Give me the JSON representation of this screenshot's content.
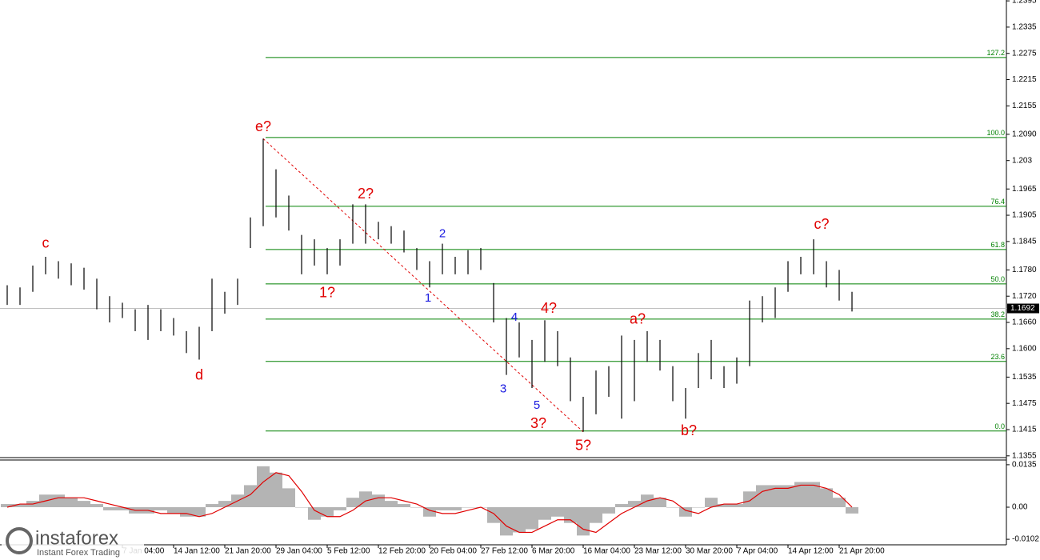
{
  "chart_data": [
    {
      "type": "ohlc",
      "color": "#000000",
      "categories": [
        null,
        null,
        null,
        null,
        null,
        null,
        null,
        null,
        null,
        "7 Jan 04:00",
        null,
        null,
        null,
        "14 Jan 12:00",
        null,
        null,
        null,
        "21 Jan 20:00",
        null,
        null,
        null,
        "29 Jan 04:00",
        null,
        null,
        null,
        "5 Feb 12:00",
        null,
        null,
        null,
        "12 Feb 20:00",
        null,
        null,
        null,
        "20 Feb 04:00",
        null,
        null,
        null,
        "27 Feb 12:00",
        null,
        null,
        null,
        "6 Mar 20:00",
        null,
        null,
        null,
        "16 Mar 04:00",
        null,
        null,
        null,
        "23 Mar 12:00",
        null,
        null,
        null,
        "30 Mar 20:00",
        null,
        null,
        null,
        "7 Apr 04:00",
        null,
        null,
        null,
        "14 Apr 12:00",
        null,
        null,
        null,
        "21 Apr 20:00",
        null
      ],
      "high": [
        1.1745,
        1.174,
        1.179,
        1.181,
        1.18,
        1.1795,
        1.1785,
        1.176,
        1.172,
        1.1705,
        1.169,
        1.17,
        1.169,
        1.167,
        1.164,
        1.165,
        1.176,
        1.173,
        1.176,
        1.19,
        1.208,
        1.201,
        1.195,
        1.186,
        1.185,
        1.183,
        1.185,
        1.193,
        1.193,
        1.189,
        1.188,
        1.187,
        1.183,
        1.18,
        1.184,
        1.181,
        1.1825,
        1.183,
        1.175,
        1.167,
        1.166,
        1.162,
        1.1665,
        1.164,
        1.158,
        1.149,
        1.155,
        1.156,
        1.163,
        1.162,
        1.164,
        1.162,
        1.156,
        1.151,
        1.159,
        1.162,
        1.156,
        1.158,
        1.171,
        1.172,
        1.174,
        1.18,
        1.181,
        1.185,
        1.18,
        1.178,
        1.173
      ],
      "low": [
        1.17,
        1.17,
        1.173,
        1.177,
        1.176,
        1.1745,
        1.1735,
        1.169,
        1.166,
        1.167,
        1.164,
        1.162,
        1.164,
        1.163,
        1.159,
        1.1575,
        1.164,
        1.168,
        1.17,
        1.183,
        1.188,
        1.19,
        1.187,
        1.177,
        1.179,
        1.177,
        1.179,
        1.184,
        1.184,
        1.185,
        1.184,
        1.182,
        1.178,
        1.174,
        1.177,
        1.177,
        1.177,
        1.178,
        1.166,
        1.154,
        1.158,
        1.151,
        1.157,
        1.156,
        1.148,
        1.141,
        1.145,
        1.149,
        1.144,
        1.148,
        1.157,
        1.155,
        1.148,
        1.144,
        1.151,
        1.153,
        1.151,
        1.152,
        1.156,
        1.166,
        1.167,
        1.173,
        1.177,
        1.177,
        1.174,
        1.171,
        1.1685
      ],
      "ylim": [
        1.1351,
        1.2397
      ],
      "yticks": [
        1.2395,
        1.2335,
        1.2275,
        1.2215,
        1.2155,
        {
          "value": 1.209,
          "label": "1.2090"
        },
        1.203,
        1.1965,
        1.1905,
        1.1845,
        {
          "value": 1.178,
          "label": "1.1780"
        },
        {
          "value": 1.172,
          "label": "1.1720"
        },
        {
          "value": 1.166,
          "label": "1.1660"
        },
        {
          "value": 1.16,
          "label": "1.1600"
        },
        1.1535,
        1.1475,
        1.1415,
        1.1355
      ],
      "last_price": 1.1692,
      "fib_color": "#008000",
      "fib_levels": [
        {
          "label": "127.2",
          "price": 1.22656
        },
        {
          "label": "100.0",
          "price": 1.20827
        },
        {
          "label": "76.4",
          "price": 1.19255
        },
        {
          "label": "61.8",
          "price": 1.18267
        },
        {
          "label": "50.0",
          "price": 1.17481
        },
        {
          "label": "38.2",
          "price": 1.16677
        },
        {
          "label": "23.6",
          "price": 1.15708
        },
        {
          "label": "0.0",
          "price": 1.14117
        }
      ],
      "trendline_color": "#e00000",
      "annotations": [
        {
          "text": "c",
          "color": "#e00000"
        },
        {
          "text": "d",
          "color": "#e00000"
        },
        {
          "text": "e?",
          "color": "#e00000"
        },
        {
          "text": "1?",
          "color": "#e00000"
        },
        {
          "text": "2?",
          "color": "#e00000"
        },
        {
          "text": "1",
          "color": "#1a1ae0"
        },
        {
          "text": "2",
          "color": "#1a1ae0"
        },
        {
          "text": "3",
          "color": "#1a1ae0"
        },
        {
          "text": "4",
          "color": "#1a1ae0"
        },
        {
          "text": "5",
          "color": "#1a1ae0"
        },
        {
          "text": "3?",
          "color": "#e00000"
        },
        {
          "text": "4?",
          "color": "#e00000"
        },
        {
          "text": "5?",
          "color": "#e00000"
        },
        {
          "text": "a?",
          "color": "#e00000"
        },
        {
          "text": "b?",
          "color": "#e00000"
        },
        {
          "text": "c?",
          "color": "#e00000"
        }
      ]
    },
    {
      "type": "oscillator",
      "color": "#b4b4b4",
      "signal_color": "#e00000",
      "values": [
        0.001,
        0.001,
        0.002,
        0.004,
        0.004,
        0.003,
        0.002,
        0.001,
        -0.001,
        -0.001,
        -0.002,
        -0.002,
        -0.001,
        -0.002,
        -0.003,
        -0.003,
        0.001,
        0.002,
        0.004,
        0.007,
        0.013,
        0.011,
        0.006,
        0,
        -0.004,
        -0.003,
        -0.001,
        0.003,
        0.005,
        0.004,
        0.002,
        0.001,
        0,
        -0.003,
        -0.001,
        -0.001,
        0,
        0,
        -0.005,
        -0.009,
        -0.008,
        -0.007,
        -0.004,
        -0.003,
        -0.005,
        -0.009,
        -0.005,
        -0.002,
        0.001,
        0.002,
        0.004,
        0.003,
        0,
        -0.003,
        0,
        0.003,
        0.001,
        0.001,
        0.005,
        0.007,
        0.007,
        0.007,
        0.008,
        0.008,
        0.006,
        0.003,
        -0.002
      ],
      "signal": [
        0,
        0.001,
        0.001,
        0.002,
        0.003,
        0.003,
        0.003,
        0.002,
        0.001,
        0,
        -0.001,
        -0.001,
        -0.002,
        -0.002,
        -0.002,
        -0.003,
        -0.002,
        0,
        0.002,
        0.004,
        0.008,
        0.011,
        0.01,
        0.005,
        -0.001,
        -0.003,
        -0.003,
        -0.001,
        0.002,
        0.003,
        0.003,
        0.002,
        0.001,
        -0.001,
        -0.002,
        -0.002,
        -0.001,
        0,
        -0.002,
        -0.006,
        -0.008,
        -0.008,
        -0.006,
        -0.004,
        -0.004,
        -0.007,
        -0.008,
        -0.005,
        -0.002,
        0,
        0.002,
        0.003,
        0.002,
        -0.001,
        -0.002,
        0,
        0.001,
        0.001,
        0.002,
        0.005,
        0.006,
        0.006,
        0.007,
        0.007,
        0.006,
        0.004,
        0
      ],
      "ylim": [
        -0.0117,
        0.015
      ],
      "yticks": [
        0.0135,
        {
          "value": 0,
          "label": "0.00"
        },
        -0.0102
      ]
    }
  ],
  "brand": {
    "name": "instaforex",
    "tagline": "Instant Forex Trading"
  }
}
